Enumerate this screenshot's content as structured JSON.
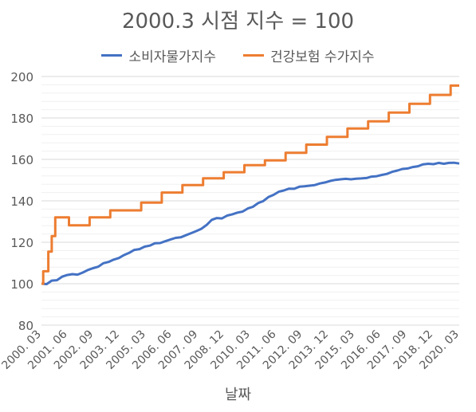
{
  "chart_data": {
    "type": "line",
    "title": "2000.3 시점 지수 = 100",
    "xlabel": "날짜",
    "ylabel": "",
    "ylim": [
      80,
      200
    ],
    "y_ticks": [
      80,
      100,
      120,
      140,
      160,
      180,
      200
    ],
    "x_tick_labels": [
      "2000. 03",
      "2001. 06",
      "2002. 09",
      "2003. 12",
      "2005. 03",
      "2006. 06",
      "2007. 09",
      "2008. 12",
      "2010. 03",
      "2011. 06",
      "2012. 09",
      "2013. 12",
      "2015. 03",
      "2016. 06",
      "2017. 09",
      "2018. 12",
      "2020. 03"
    ],
    "x_range": [
      "2000-03",
      "2020-06"
    ],
    "grid": true,
    "legend_position": "top",
    "series": [
      {
        "name": "소비자물가지수",
        "color": "#4472C4",
        "points": [
          [
            "2000-03",
            100.0
          ],
          [
            "2000-06",
            99.8
          ],
          [
            "2000-09",
            101.5
          ],
          [
            "2000-12",
            101.7
          ],
          [
            "2001-03",
            103.4
          ],
          [
            "2001-06",
            104.2
          ],
          [
            "2001-09",
            104.6
          ],
          [
            "2001-12",
            104.4
          ],
          [
            "2002-03",
            105.4
          ],
          [
            "2002-06",
            106.6
          ],
          [
            "2002-09",
            107.5
          ],
          [
            "2002-12",
            108.2
          ],
          [
            "2003-03",
            109.9
          ],
          [
            "2003-06",
            110.5
          ],
          [
            "2003-09",
            111.6
          ],
          [
            "2003-12",
            112.4
          ],
          [
            "2004-03",
            113.8
          ],
          [
            "2004-06",
            114.9
          ],
          [
            "2004-09",
            116.3
          ],
          [
            "2004-12",
            116.7
          ],
          [
            "2005-03",
            117.9
          ],
          [
            "2005-06",
            118.4
          ],
          [
            "2005-09",
            119.5
          ],
          [
            "2005-12",
            119.6
          ],
          [
            "2006-03",
            120.5
          ],
          [
            "2006-06",
            121.3
          ],
          [
            "2006-09",
            122.1
          ],
          [
            "2006-12",
            122.4
          ],
          [
            "2007-03",
            123.4
          ],
          [
            "2007-06",
            124.4
          ],
          [
            "2007-09",
            125.4
          ],
          [
            "2007-12",
            126.5
          ],
          [
            "2008-03",
            128.3
          ],
          [
            "2008-06",
            130.8
          ],
          [
            "2008-09",
            131.7
          ],
          [
            "2008-12",
            131.5
          ],
          [
            "2009-03",
            132.9
          ],
          [
            "2009-06",
            133.5
          ],
          [
            "2009-09",
            134.3
          ],
          [
            "2009-12",
            134.8
          ],
          [
            "2010-03",
            136.3
          ],
          [
            "2010-06",
            137.1
          ],
          [
            "2010-09",
            138.9
          ],
          [
            "2010-12",
            139.9
          ],
          [
            "2011-03",
            141.8
          ],
          [
            "2011-06",
            142.9
          ],
          [
            "2011-09",
            144.4
          ],
          [
            "2011-12",
            145.0
          ],
          [
            "2012-03",
            145.9
          ],
          [
            "2012-06",
            145.8
          ],
          [
            "2012-09",
            146.8
          ],
          [
            "2012-12",
            147.0
          ],
          [
            "2013-03",
            147.3
          ],
          [
            "2013-06",
            147.6
          ],
          [
            "2013-09",
            148.4
          ],
          [
            "2013-12",
            148.9
          ],
          [
            "2014-03",
            149.6
          ],
          [
            "2014-06",
            150.1
          ],
          [
            "2014-09",
            150.4
          ],
          [
            "2014-12",
            150.6
          ],
          [
            "2015-03",
            150.4
          ],
          [
            "2015-06",
            150.7
          ],
          [
            "2015-09",
            150.8
          ],
          [
            "2015-12",
            151.0
          ],
          [
            "2016-03",
            151.7
          ],
          [
            "2016-06",
            151.9
          ],
          [
            "2016-09",
            152.5
          ],
          [
            "2016-12",
            153.0
          ],
          [
            "2017-03",
            154.0
          ],
          [
            "2017-06",
            154.6
          ],
          [
            "2017-09",
            155.4
          ],
          [
            "2017-12",
            155.6
          ],
          [
            "2018-03",
            156.3
          ],
          [
            "2018-06",
            156.7
          ],
          [
            "2018-09",
            157.6
          ],
          [
            "2018-12",
            157.9
          ],
          [
            "2019-03",
            157.7
          ],
          [
            "2019-06",
            158.3
          ],
          [
            "2019-09",
            157.9
          ],
          [
            "2019-12",
            158.3
          ],
          [
            "2020-03",
            158.4
          ],
          [
            "2020-06",
            158.0
          ]
        ]
      },
      {
        "name": "건강보험 수가지수",
        "color": "#ED7D31",
        "steps": [
          [
            "2000-03",
            100.0
          ],
          [
            "2000-04",
            106.0
          ],
          [
            "2000-07",
            115.5
          ],
          [
            "2000-09",
            123.0
          ],
          [
            "2000-11",
            132.0
          ],
          [
            "2001-06",
            132.0
          ],
          [
            "2001-07",
            128.2
          ],
          [
            "2002-06",
            128.2
          ],
          [
            "2002-07",
            132.0
          ],
          [
            "2003-06",
            132.0
          ],
          [
            "2003-07",
            135.4
          ],
          [
            "2004-12",
            135.4
          ],
          [
            "2005-01",
            139.1
          ],
          [
            "2005-12",
            139.1
          ],
          [
            "2006-01",
            144.0
          ],
          [
            "2006-12",
            144.0
          ],
          [
            "2007-01",
            147.6
          ],
          [
            "2007-12",
            147.6
          ],
          [
            "2008-01",
            150.9
          ],
          [
            "2008-12",
            150.9
          ],
          [
            "2009-01",
            153.8
          ],
          [
            "2009-12",
            153.8
          ],
          [
            "2010-01",
            157.2
          ],
          [
            "2010-12",
            157.2
          ],
          [
            "2011-01",
            159.5
          ],
          [
            "2011-12",
            159.5
          ],
          [
            "2012-01",
            163.2
          ],
          [
            "2012-12",
            163.2
          ],
          [
            "2013-01",
            167.1
          ],
          [
            "2013-12",
            167.1
          ],
          [
            "2014-01",
            170.9
          ],
          [
            "2014-12",
            170.9
          ],
          [
            "2015-01",
            174.9
          ],
          [
            "2015-12",
            174.9
          ],
          [
            "2016-01",
            178.4
          ],
          [
            "2016-12",
            178.4
          ],
          [
            "2017-01",
            182.6
          ],
          [
            "2017-12",
            182.6
          ],
          [
            "2018-01",
            186.8
          ],
          [
            "2018-12",
            186.8
          ],
          [
            "2019-01",
            191.1
          ],
          [
            "2019-12",
            191.1
          ],
          [
            "2020-01",
            195.6
          ],
          [
            "2020-06",
            195.6
          ]
        ]
      }
    ]
  }
}
